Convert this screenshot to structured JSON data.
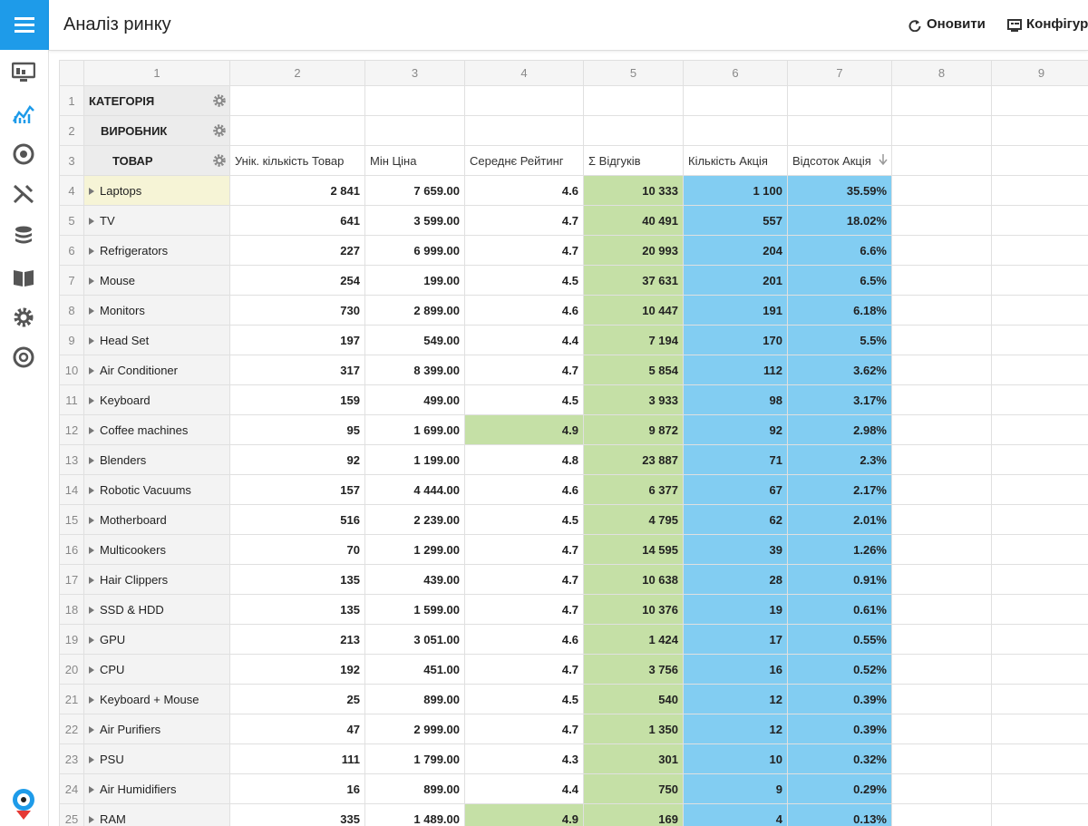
{
  "header": {
    "title": "Аналіз ринку",
    "actions": [
      "Оновити",
      "Конфігур"
    ]
  },
  "table": {
    "column_numbers": [
      1,
      2,
      3,
      4,
      5,
      6,
      7,
      8,
      9
    ],
    "row_numbers": [
      1,
      2,
      3,
      4,
      5,
      6,
      7,
      8,
      9,
      10,
      11,
      12,
      13,
      14,
      15,
      16,
      17,
      18,
      19,
      20,
      21,
      22,
      23,
      24,
      25
    ],
    "row_fields": [
      "КАТЕГОРІЯ",
      "ВИРОБНИК",
      "ТОВАР"
    ],
    "measures": [
      "Унік. кількість Товар",
      "Мін Ціна",
      "Середнє Рейтинг",
      "Σ Відгуків",
      "Кількість Акція",
      "Відсоток Акція"
    ],
    "column_fills": {
      "3": "#c5e0a6",
      "4": "#82cdf2",
      "5": "#82cdf2"
    },
    "rows": [
      {
        "label": "Laptops",
        "values": [
          "2 841",
          "7 659.00",
          "4.6",
          "10 333",
          "1 100",
          "35.59%"
        ]
      },
      {
        "label": "TV",
        "values": [
          "641",
          "3 599.00",
          "4.7",
          "40 491",
          "557",
          "18.02%"
        ]
      },
      {
        "label": "Refrigerators",
        "values": [
          "227",
          "6 999.00",
          "4.7",
          "20 993",
          "204",
          "6.6%"
        ]
      },
      {
        "label": "Mouse",
        "values": [
          "254",
          "199.00",
          "4.5",
          "37 631",
          "201",
          "6.5%"
        ]
      },
      {
        "label": "Monitors",
        "values": [
          "730",
          "2 899.00",
          "4.6",
          "10 447",
          "191",
          "6.18%"
        ]
      },
      {
        "label": "Head Set",
        "values": [
          "197",
          "549.00",
          "4.4",
          "7 194",
          "170",
          "5.5%"
        ]
      },
      {
        "label": "Air Conditioner",
        "values": [
          "317",
          "8 399.00",
          "4.7",
          "5 854",
          "112",
          "3.62%"
        ]
      },
      {
        "label": "Keyboard",
        "values": [
          "159",
          "499.00",
          "4.5",
          "3 933",
          "98",
          "3.17%"
        ]
      },
      {
        "label": "Coffee machines",
        "values": [
          "95",
          "1 699.00",
          "4.9",
          "9 872",
          "92",
          "2.98%"
        ],
        "fills": {
          "2": "#c5e0a6"
        }
      },
      {
        "label": "Blenders",
        "values": [
          "92",
          "1 199.00",
          "4.8",
          "23 887",
          "71",
          "2.3%"
        ]
      },
      {
        "label": "Robotic Vacuums",
        "values": [
          "157",
          "4 444.00",
          "4.6",
          "6 377",
          "67",
          "2.17%"
        ]
      },
      {
        "label": "Motherboard",
        "values": [
          "516",
          "2 239.00",
          "4.5",
          "4 795",
          "62",
          "2.01%"
        ]
      },
      {
        "label": "Multicookers",
        "values": [
          "70",
          "1 299.00",
          "4.7",
          "14 595",
          "39",
          "1.26%"
        ]
      },
      {
        "label": "Hair Clippers",
        "values": [
          "135",
          "439.00",
          "4.7",
          "10 638",
          "28",
          "0.91%"
        ]
      },
      {
        "label": "SSD & HDD",
        "values": [
          "135",
          "1 599.00",
          "4.7",
          "10 376",
          "19",
          "0.61%"
        ]
      },
      {
        "label": "GPU",
        "values": [
          "213",
          "3 051.00",
          "4.6",
          "1 424",
          "17",
          "0.55%"
        ]
      },
      {
        "label": "CPU",
        "values": [
          "192",
          "451.00",
          "4.7",
          "3 756",
          "16",
          "0.52%"
        ]
      },
      {
        "label": "Keyboard + Mouse",
        "values": [
          "25",
          "899.00",
          "4.5",
          "540",
          "12",
          "0.39%"
        ]
      },
      {
        "label": "Air Purifiers",
        "values": [
          "47",
          "2 999.00",
          "4.7",
          "1 350",
          "12",
          "0.39%"
        ]
      },
      {
        "label": "PSU",
        "values": [
          "111",
          "1 799.00",
          "4.3",
          "301",
          "10",
          "0.32%"
        ]
      },
      {
        "label": "Air Humidifiers",
        "values": [
          "16",
          "899.00",
          "4.4",
          "750",
          "9",
          "0.29%"
        ]
      },
      {
        "label": "RAM",
        "values": [
          "335",
          "1 489.00",
          "4.9",
          "169",
          "4",
          "0.13%"
        ],
        "fills": {
          "2": "#c5e0a6"
        }
      }
    ]
  }
}
